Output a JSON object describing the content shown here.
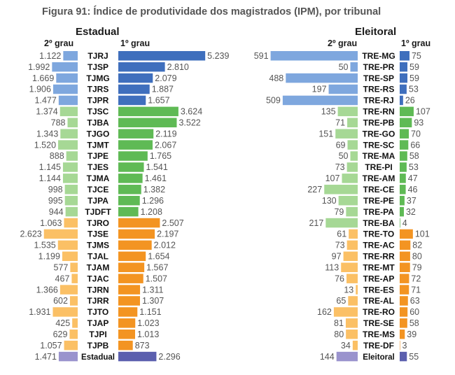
{
  "title": "Figura 91: Índice de produtividade dos magistrados (IPM), por tribunal",
  "colors": {
    "blue_dark": "#3f6fbd",
    "blue_light": "#7ea7de",
    "green_dark": "#5fba55",
    "green_light": "#a6d895",
    "orange_dark": "#f39422",
    "orange_light": "#fbc065",
    "purple_dark": "#5b5fae",
    "purple_light": "#9a93cd"
  },
  "chart_data": [
    {
      "type": "bar",
      "title": "Estadual",
      "series": [
        {
          "name": "2º grau",
          "direction": "left"
        },
        {
          "name": "1º grau",
          "direction": "right"
        }
      ],
      "rows": [
        {
          "label": "TJRJ",
          "segundo": "1.122",
          "primeiro": "5.239",
          "v2": 1122,
          "v1": 5239,
          "group": "blue"
        },
        {
          "label": "TJSP",
          "segundo": "1.992",
          "primeiro": "2.810",
          "v2": 1992,
          "v1": 2810,
          "group": "blue"
        },
        {
          "label": "TJMG",
          "segundo": "1.669",
          "primeiro": "2.079",
          "v2": 1669,
          "v1": 2079,
          "group": "blue"
        },
        {
          "label": "TJRS",
          "segundo": "1.906",
          "primeiro": "1.887",
          "v2": 1906,
          "v1": 1887,
          "group": "blue"
        },
        {
          "label": "TJPR",
          "segundo": "1.477",
          "primeiro": "1.657",
          "v2": 1477,
          "v1": 1657,
          "group": "blue"
        },
        {
          "label": "TJSC",
          "segundo": "1.374",
          "primeiro": "3.624",
          "v2": 1374,
          "v1": 3624,
          "group": "green"
        },
        {
          "label": "TJBA",
          "segundo": "788",
          "primeiro": "3.522",
          "v2": 788,
          "v1": 3522,
          "group": "green"
        },
        {
          "label": "TJGO",
          "segundo": "1.343",
          "primeiro": "2.119",
          "v2": 1343,
          "v1": 2119,
          "group": "green"
        },
        {
          "label": "TJMT",
          "segundo": "1.520",
          "primeiro": "2.067",
          "v2": 1520,
          "v1": 2067,
          "group": "green"
        },
        {
          "label": "TJPE",
          "segundo": "888",
          "primeiro": "1.765",
          "v2": 888,
          "v1": 1765,
          "group": "green"
        },
        {
          "label": "TJES",
          "segundo": "1.145",
          "primeiro": "1.541",
          "v2": 1145,
          "v1": 1541,
          "group": "green"
        },
        {
          "label": "TJMA",
          "segundo": "1.144",
          "primeiro": "1.461",
          "v2": 1144,
          "v1": 1461,
          "group": "green"
        },
        {
          "label": "TJCE",
          "segundo": "998",
          "primeiro": "1.382",
          "v2": 998,
          "v1": 1382,
          "group": "green"
        },
        {
          "label": "TJPA",
          "segundo": "995",
          "primeiro": "1.296",
          "v2": 995,
          "v1": 1296,
          "group": "green"
        },
        {
          "label": "TJDFT",
          "segundo": "944",
          "primeiro": "1.208",
          "v2": 944,
          "v1": 1208,
          "group": "green"
        },
        {
          "label": "TJRO",
          "segundo": "1.063",
          "primeiro": "2.507",
          "v2": 1063,
          "v1": 2507,
          "group": "orange"
        },
        {
          "label": "TJSE",
          "segundo": "2.623",
          "primeiro": "2.197",
          "v2": 2623,
          "v1": 2197,
          "group": "orange"
        },
        {
          "label": "TJMS",
          "segundo": "1.535",
          "primeiro": "2.012",
          "v2": 1535,
          "v1": 2012,
          "group": "orange"
        },
        {
          "label": "TJAL",
          "segundo": "1.199",
          "primeiro": "1.654",
          "v2": 1199,
          "v1": 1654,
          "group": "orange"
        },
        {
          "label": "TJAM",
          "segundo": "577",
          "primeiro": "1.567",
          "v2": 577,
          "v1": 1567,
          "group": "orange"
        },
        {
          "label": "TJAC",
          "segundo": "467",
          "primeiro": "1.507",
          "v2": 467,
          "v1": 1507,
          "group": "orange"
        },
        {
          "label": "TJRN",
          "segundo": "1.366",
          "primeiro": "1.311",
          "v2": 1366,
          "v1": 1311,
          "group": "orange"
        },
        {
          "label": "TJRR",
          "segundo": "602",
          "primeiro": "1.307",
          "v2": 602,
          "v1": 1307,
          "group": "orange"
        },
        {
          "label": "TJTO",
          "segundo": "1.931",
          "primeiro": "1.151",
          "v2": 1931,
          "v1": 1151,
          "group": "orange"
        },
        {
          "label": "TJAP",
          "segundo": "425",
          "primeiro": "1.023",
          "v2": 425,
          "v1": 1023,
          "group": "orange"
        },
        {
          "label": "TJPI",
          "segundo": "629",
          "primeiro": "1.013",
          "v2": 629,
          "v1": 1013,
          "group": "orange"
        },
        {
          "label": "TJPB",
          "segundo": "1.057",
          "primeiro": "873",
          "v2": 1057,
          "v1": 873,
          "group": "orange"
        },
        {
          "label": "Estadual",
          "segundo": "1.471",
          "primeiro": "2.296",
          "v2": 1471,
          "v1": 2296,
          "group": "purple"
        }
      ]
    },
    {
      "type": "bar",
      "title": "Eleitoral",
      "series": [
        {
          "name": "2º grau",
          "direction": "left"
        },
        {
          "name": "1º grau",
          "direction": "right"
        }
      ],
      "rows": [
        {
          "label": "TRE-MG",
          "segundo": "591",
          "primeiro": "75",
          "v2": 591,
          "v1": 75,
          "group": "blue"
        },
        {
          "label": "TRE-PR",
          "segundo": "50",
          "primeiro": "59",
          "v2": 50,
          "v1": 59,
          "group": "blue"
        },
        {
          "label": "TRE-SP",
          "segundo": "488",
          "primeiro": "59",
          "v2": 488,
          "v1": 59,
          "group": "blue"
        },
        {
          "label": "TRE-RS",
          "segundo": "197",
          "primeiro": "53",
          "v2": 197,
          "v1": 53,
          "group": "blue"
        },
        {
          "label": "TRE-RJ",
          "segundo": "509",
          "primeiro": "26",
          "v2": 509,
          "v1": 26,
          "group": "blue"
        },
        {
          "label": "TRE-RN",
          "segundo": "135",
          "primeiro": "107",
          "v2": 135,
          "v1": 107,
          "group": "green"
        },
        {
          "label": "TRE-PB",
          "segundo": "71",
          "primeiro": "93",
          "v2": 71,
          "v1": 93,
          "group": "green"
        },
        {
          "label": "TRE-GO",
          "segundo": "151",
          "primeiro": "70",
          "v2": 151,
          "v1": 70,
          "group": "green"
        },
        {
          "label": "TRE-SC",
          "segundo": "69",
          "primeiro": "66",
          "v2": 69,
          "v1": 66,
          "group": "green"
        },
        {
          "label": "TRE-MA",
          "segundo": "50",
          "primeiro": "58",
          "v2": 50,
          "v1": 58,
          "group": "green"
        },
        {
          "label": "TRE-PI",
          "segundo": "73",
          "primeiro": "53",
          "v2": 73,
          "v1": 53,
          "group": "green"
        },
        {
          "label": "TRE-AM",
          "segundo": "107",
          "primeiro": "47",
          "v2": 107,
          "v1": 47,
          "group": "green"
        },
        {
          "label": "TRE-CE",
          "segundo": "227",
          "primeiro": "46",
          "v2": 227,
          "v1": 46,
          "group": "green"
        },
        {
          "label": "TRE-PE",
          "segundo": "130",
          "primeiro": "37",
          "v2": 130,
          "v1": 37,
          "group": "green"
        },
        {
          "label": "TRE-PA",
          "segundo": "79",
          "primeiro": "32",
          "v2": 79,
          "v1": 32,
          "group": "green"
        },
        {
          "label": "TRE-BA",
          "segundo": "217",
          "primeiro": "4",
          "v2": 217,
          "v1": 4,
          "group": "green"
        },
        {
          "label": "TRE-TO",
          "segundo": "61",
          "primeiro": "101",
          "v2": 61,
          "v1": 101,
          "group": "orange"
        },
        {
          "label": "TRE-AC",
          "segundo": "73",
          "primeiro": "82",
          "v2": 73,
          "v1": 82,
          "group": "orange"
        },
        {
          "label": "TRE-RR",
          "segundo": "97",
          "primeiro": "80",
          "v2": 97,
          "v1": 80,
          "group": "orange"
        },
        {
          "label": "TRE-MT",
          "segundo": "113",
          "primeiro": "79",
          "v2": 113,
          "v1": 79,
          "group": "orange"
        },
        {
          "label": "TRE-AP",
          "segundo": "76",
          "primeiro": "72",
          "v2": 76,
          "v1": 72,
          "group": "orange"
        },
        {
          "label": "TRE-ES",
          "segundo": "13",
          "primeiro": "71",
          "v2": 13,
          "v1": 71,
          "group": "orange"
        },
        {
          "label": "TRE-AL",
          "segundo": "65",
          "primeiro": "63",
          "v2": 65,
          "v1": 63,
          "group": "orange"
        },
        {
          "label": "TRE-RO",
          "segundo": "162",
          "primeiro": "60",
          "v2": 162,
          "v1": 60,
          "group": "orange"
        },
        {
          "label": "TRE-SE",
          "segundo": "81",
          "primeiro": "58",
          "v2": 81,
          "v1": 58,
          "group": "orange"
        },
        {
          "label": "TRE-MS",
          "segundo": "80",
          "primeiro": "39",
          "v2": 80,
          "v1": 39,
          "group": "orange"
        },
        {
          "label": "TRE-DF",
          "segundo": "34",
          "primeiro": "3",
          "v2": 34,
          "v1": 3,
          "group": "orange"
        },
        {
          "label": "Eleitoral",
          "segundo": "144",
          "primeiro": "55",
          "v2": 144,
          "v1": 55,
          "group": "purple"
        }
      ]
    }
  ]
}
